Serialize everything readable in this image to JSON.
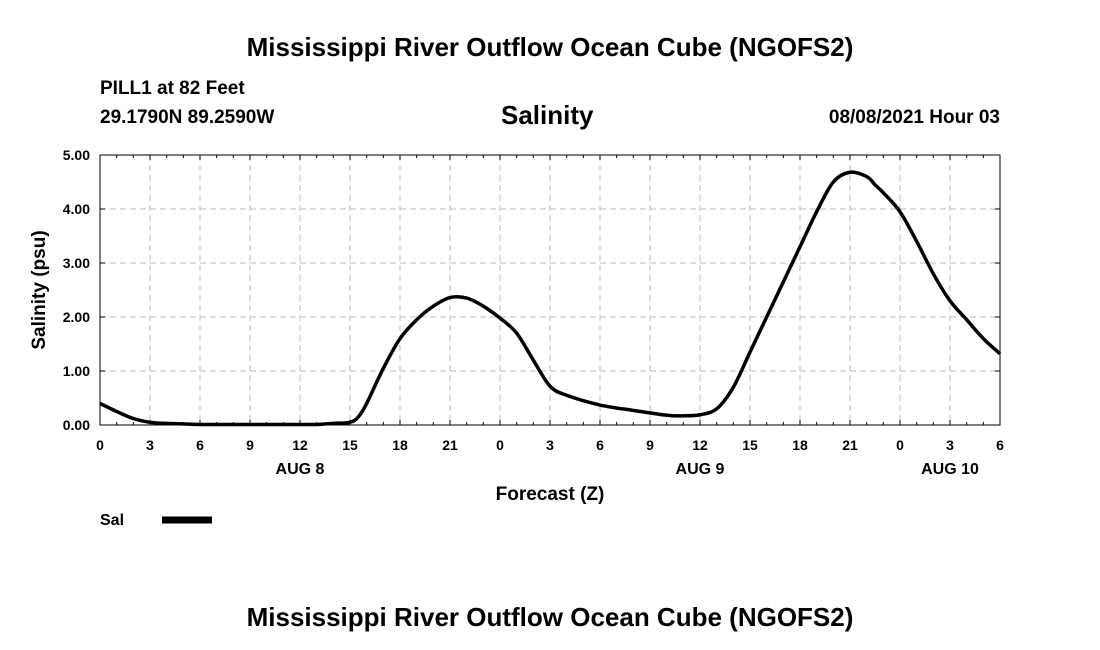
{
  "header": {
    "title": "Mississippi River Outflow Ocean Cube (NGOFS2)",
    "station": "PILL1 at 82 Feet",
    "coords": "29.1790N  89.2590W",
    "parameter": "Salinity",
    "datetime": "08/08/2021 Hour 03"
  },
  "footer": {
    "title": "Mississippi River Outflow Ocean Cube (NGOFS2)"
  },
  "chart_data": {
    "type": "line",
    "title": "Salinity",
    "xlabel": "Forecast (Z)",
    "ylabel": "Salinity (psu)",
    "grid": true,
    "xlim": [
      0,
      54
    ],
    "ylim": [
      0,
      5
    ],
    "x_ticks": [
      0,
      3,
      6,
      9,
      12,
      15,
      18,
      21,
      24,
      27,
      30,
      33,
      36,
      39,
      42,
      45,
      48,
      51,
      54
    ],
    "x_tick_labels": [
      "0",
      "3",
      "6",
      "9",
      "12",
      "15",
      "18",
      "21",
      "0",
      "3",
      "6",
      "9",
      "12",
      "15",
      "18",
      "21",
      "0",
      "3",
      "6"
    ],
    "y_ticks": [
      0,
      1,
      2,
      3,
      4,
      5
    ],
    "y_tick_labels": [
      "0.00",
      "1.00",
      "2.00",
      "3.00",
      "4.00",
      "5.00"
    ],
    "day_labels": [
      {
        "x": 12,
        "label": "AUG 8"
      },
      {
        "x": 36,
        "label": "AUG 9"
      },
      {
        "x": 51,
        "label": "AUG 10"
      }
    ],
    "legend": {
      "position": "bottom-left",
      "label": "Sal"
    },
    "series": [
      {
        "name": "Sal",
        "color": "#000000",
        "x": [
          0,
          1,
          2,
          3,
          4,
          5,
          6,
          8,
          10,
          12,
          13,
          14,
          15,
          15.5,
          16,
          17,
          18,
          19,
          20,
          21,
          22,
          23,
          24,
          25,
          26,
          27,
          28,
          30,
          32,
          34,
          35,
          36,
          37,
          38,
          39,
          40,
          41,
          42,
          43,
          44,
          45,
          46,
          46.5,
          47,
          48,
          49,
          50,
          51,
          52,
          53,
          54
        ],
        "y": [
          0.4,
          0.25,
          0.12,
          0.05,
          0.03,
          0.02,
          0.01,
          0.01,
          0.01,
          0.01,
          0.01,
          0.03,
          0.05,
          0.15,
          0.4,
          1.05,
          1.6,
          1.95,
          2.2,
          2.36,
          2.35,
          2.2,
          1.98,
          1.7,
          1.2,
          0.72,
          0.55,
          0.37,
          0.27,
          0.18,
          0.17,
          0.19,
          0.3,
          0.7,
          1.35,
          2.0,
          2.65,
          3.3,
          3.95,
          4.5,
          4.68,
          4.6,
          4.45,
          4.3,
          3.95,
          3.4,
          2.8,
          2.3,
          1.95,
          1.6,
          1.32
        ]
      }
    ]
  }
}
